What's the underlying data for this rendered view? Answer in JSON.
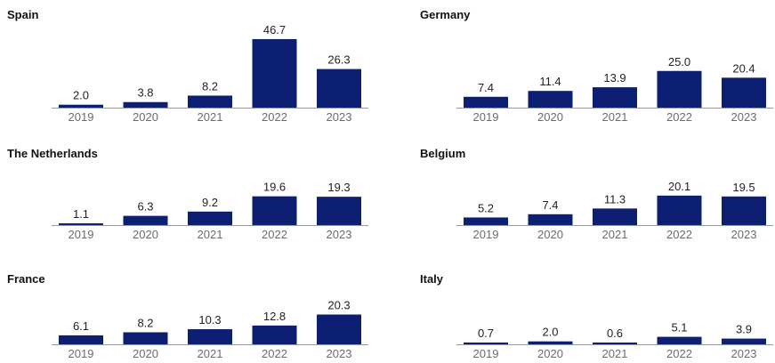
{
  "colors": {
    "bar": "#0d1f73",
    "axis": "#9a9a9a"
  },
  "chart_data": [
    {
      "type": "bar",
      "title": "Spain",
      "categories": [
        "2019",
        "2020",
        "2021",
        "2022",
        "2023"
      ],
      "values": [
        2.0,
        3.8,
        8.2,
        46.7,
        26.3
      ],
      "labels": [
        "2.0",
        "3.8",
        "8.2",
        "46.7",
        "26.3"
      ]
    },
    {
      "type": "bar",
      "title": "Germany",
      "categories": [
        "2019",
        "2020",
        "2021",
        "2022",
        "2023"
      ],
      "values": [
        7.4,
        11.4,
        13.9,
        25.0,
        20.4
      ],
      "labels": [
        "7.4",
        "11.4",
        "13.9",
        "25.0",
        "20.4"
      ]
    },
    {
      "type": "bar",
      "title": "The Netherlands",
      "categories": [
        "2019",
        "2020",
        "2021",
        "2022",
        "2023"
      ],
      "values": [
        1.1,
        6.3,
        9.2,
        19.6,
        19.3
      ],
      "labels": [
        "1.1",
        "6.3",
        "9.2",
        "19.6",
        "19.3"
      ]
    },
    {
      "type": "bar",
      "title": "Belgium",
      "categories": [
        "2019",
        "2020",
        "2021",
        "2022",
        "2023"
      ],
      "values": [
        5.2,
        7.4,
        11.3,
        20.1,
        19.5
      ],
      "labels": [
        "5.2",
        "7.4",
        "11.3",
        "20.1",
        "19.5"
      ]
    },
    {
      "type": "bar",
      "title": "France",
      "categories": [
        "2019",
        "2020",
        "2021",
        "2022",
        "2023"
      ],
      "values": [
        6.1,
        8.2,
        10.3,
        12.8,
        20.3
      ],
      "labels": [
        "6.1",
        "8.2",
        "10.3",
        "12.8",
        "20.3"
      ]
    },
    {
      "type": "bar",
      "title": "Italy",
      "categories": [
        "2019",
        "2020",
        "2021",
        "2022",
        "2023"
      ],
      "values": [
        0.7,
        2.0,
        0.6,
        5.1,
        3.9
      ],
      "labels": [
        "0.7",
        "2.0",
        "0.6",
        "5.1",
        "3.9"
      ]
    }
  ]
}
